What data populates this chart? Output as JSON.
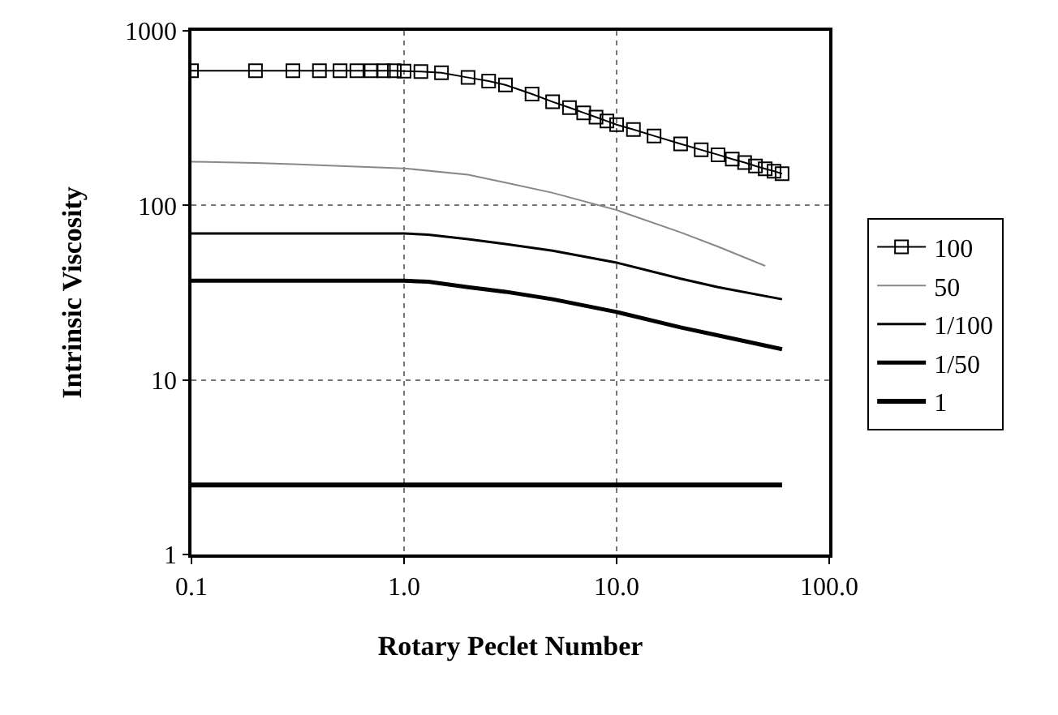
{
  "chart_data": {
    "type": "line",
    "xlabel": "Rotary Peclet Number",
    "ylabel": "Intrinsic Viscosity",
    "log": "xy",
    "grid": true,
    "legend": "right",
    "xlim": [
      0.1,
      100
    ],
    "xticks": [
      {
        "value": 0.1,
        "label": "0.1"
      },
      {
        "value": 1,
        "label": "1.0"
      },
      {
        "value": 10,
        "label": "10.0"
      },
      {
        "value": 100,
        "label": "100.0"
      }
    ],
    "ylim": [
      1,
      1000
    ],
    "yticks": [
      1,
      10,
      100,
      1000
    ],
    "series": [
      {
        "name": "100",
        "color": "#000000",
        "marker": "square",
        "x": [
          0.1,
          0.2,
          0.3,
          0.4,
          0.5,
          0.6,
          0.7,
          0.8,
          0.9,
          1.0,
          1.2,
          1.5,
          2,
          2.5,
          3,
          4,
          5,
          6,
          7,
          8,
          9,
          10,
          12,
          15,
          20,
          25,
          30,
          35,
          40,
          45,
          50,
          55,
          60
        ],
        "values": [
          590,
          590,
          590,
          590,
          590,
          590,
          590,
          590,
          590,
          588,
          585,
          575,
          540,
          515,
          490,
          434,
          392,
          363,
          339,
          320,
          304,
          290,
          272,
          250,
          225,
          208,
          195,
          184,
          176,
          168,
          162,
          157,
          152
        ]
      },
      {
        "name": "50",
        "color": "#888888",
        "marker": "none",
        "x": [
          0.1,
          0.2,
          0.3,
          0.5,
          1,
          2,
          3,
          5,
          10,
          20,
          30,
          50
        ],
        "values": [
          178,
          175,
          172,
          168,
          163,
          150,
          135,
          118,
          94,
          70,
          58,
          45
        ]
      },
      {
        "name": "1/100",
        "color": "#000000",
        "marker": "none",
        "x": [
          0.1,
          1,
          1.3,
          2,
          3,
          5,
          10,
          20,
          30,
          60
        ],
        "values": [
          69,
          69,
          68,
          64,
          60,
          55,
          47,
          38,
          34,
          29
        ]
      },
      {
        "name": "1/50",
        "color": "#000000",
        "marker": "none",
        "x": [
          0.1,
          1,
          1.3,
          2,
          3,
          5,
          10,
          20,
          30,
          60
        ],
        "values": [
          37,
          37,
          36.5,
          34,
          32,
          29,
          24.5,
          20,
          18,
          15
        ]
      },
      {
        "name": "1",
        "color": "#000000",
        "marker": "none",
        "x": [
          0.1,
          60
        ],
        "values": [
          2.5,
          2.5
        ]
      }
    ]
  }
}
